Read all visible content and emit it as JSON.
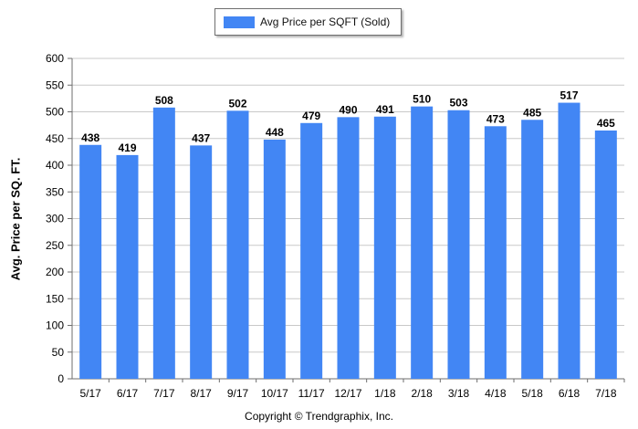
{
  "legend": {
    "label": "Avg Price per SQFT (Sold)"
  },
  "copyright": "Copyright © Trendgraphix, Inc.",
  "chart_data": {
    "type": "bar",
    "xlabel": "",
    "ylabel": "Avg. Price per SQ. FT.",
    "ylim": [
      0,
      600
    ],
    "yticks": [
      0,
      50,
      100,
      150,
      200,
      250,
      300,
      350,
      400,
      450,
      500,
      550,
      600
    ],
    "grid": true,
    "legend_position": "top-center",
    "categories": [
      "5/17",
      "6/17",
      "7/17",
      "8/17",
      "9/17",
      "10/17",
      "11/17",
      "12/17",
      "1/18",
      "2/18",
      "3/18",
      "4/18",
      "5/18",
      "6/18",
      "7/18"
    ],
    "series": [
      {
        "name": "Avg Price per SQFT (Sold)",
        "color": "#4286f4",
        "values": [
          438,
          419,
          508,
          437,
          502,
          448,
          479,
          490,
          491,
          510,
          503,
          473,
          485,
          517,
          465
        ]
      }
    ]
  }
}
